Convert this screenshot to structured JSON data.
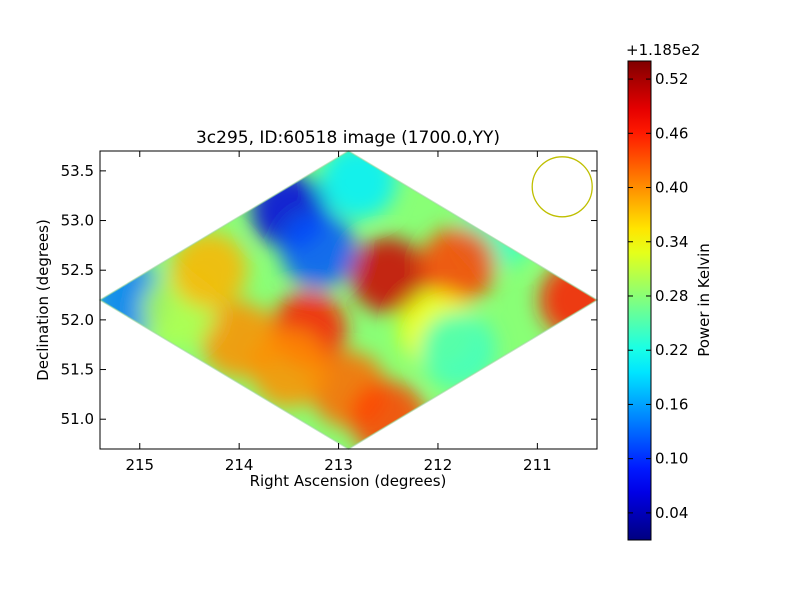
{
  "chart_data": {
    "type": "heatmap",
    "title": "3c295, ID:60518 image (1700.0,YY)",
    "xlabel": "Right Ascension (degrees)",
    "ylabel": "Declination (degrees)",
    "x_reversed": true,
    "xlim": [
      215.4,
      210.4
    ],
    "ylim": [
      50.7,
      53.7
    ],
    "xticks": [
      215,
      214,
      213,
      212,
      211
    ],
    "yticks": [
      51.0,
      51.5,
      52.0,
      52.5,
      53.0,
      53.5
    ],
    "xtick_labels": [
      "215",
      "214",
      "213",
      "212",
      "211"
    ],
    "ytick_labels": [
      "51.0",
      "51.5",
      "52.0",
      "52.5",
      "53.0",
      "53.5"
    ],
    "colormap": "jet",
    "footprint": {
      "shape": "diamond",
      "top": [
        212.9,
        53.7
      ],
      "right": [
        210.4,
        52.2
      ],
      "bottom": [
        212.9,
        50.7
      ],
      "left": [
        215.4,
        52.2
      ]
    },
    "features": [
      {
        "ra": 213.5,
        "dec": 53.1,
        "value": 0.06
      },
      {
        "ra": 213.2,
        "dec": 52.7,
        "value": 0.12
      },
      {
        "ra": 215.1,
        "dec": 52.2,
        "value": 0.14
      },
      {
        "ra": 212.8,
        "dec": 53.4,
        "value": 0.2
      },
      {
        "ra": 211.4,
        "dec": 52.9,
        "value": 0.24
      },
      {
        "ra": 212.5,
        "dec": 52.45,
        "value": 0.5
      },
      {
        "ra": 213.3,
        "dec": 51.9,
        "value": 0.46
      },
      {
        "ra": 212.9,
        "dec": 51.3,
        "value": 0.42
      },
      {
        "ra": 210.6,
        "dec": 52.2,
        "value": 0.46
      },
      {
        "ra": 211.8,
        "dec": 52.55,
        "value": 0.44
      },
      {
        "ra": 214.0,
        "dec": 51.8,
        "value": 0.4
      },
      {
        "ra": 213.5,
        "dec": 51.5,
        "value": 0.4
      },
      {
        "ra": 212.0,
        "dec": 51.9,
        "value": 0.34
      },
      {
        "ra": 214.6,
        "dec": 52.1,
        "value": 0.3
      },
      {
        "ra": 212.5,
        "dec": 51.0,
        "value": 0.44
      },
      {
        "ra": 214.3,
        "dec": 52.5,
        "value": 0.38
      },
      {
        "ra": 211.8,
        "dec": 51.7,
        "value": 0.24
      }
    ],
    "beam_circle": {
      "ra": 210.75,
      "dec": 53.34,
      "color": "#bfbf00"
    },
    "colorbar": {
      "label": "Power in Kelvin",
      "offset_label": "+1.185e2",
      "range": [
        0.01,
        0.54
      ],
      "ticks": [
        0.04,
        0.1,
        0.16,
        0.22,
        0.28,
        0.34,
        0.4,
        0.46,
        0.52
      ],
      "tick_labels": [
        "0.04",
        "0.10",
        "0.16",
        "0.22",
        "0.28",
        "0.34",
        "0.40",
        "0.46",
        "0.52"
      ]
    }
  }
}
